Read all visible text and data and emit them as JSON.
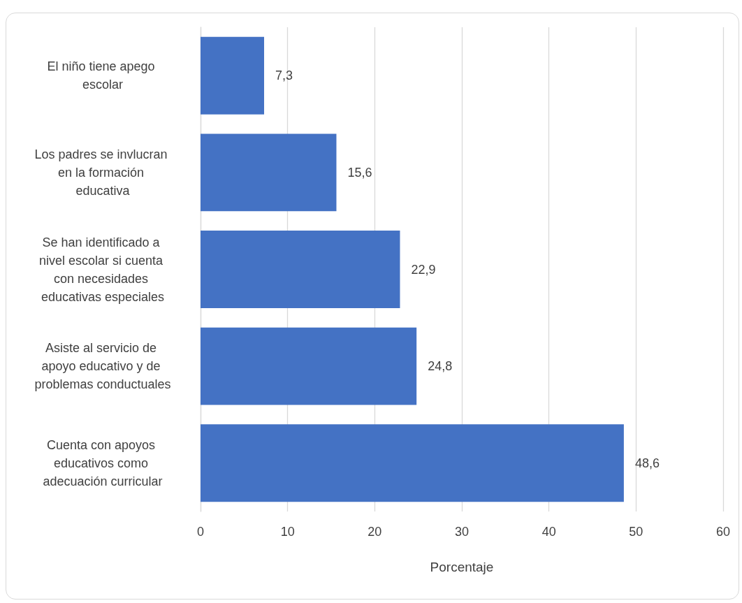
{
  "chart_data": {
    "type": "bar",
    "orientation": "horizontal",
    "xlabel": "Porcentaje",
    "categories": [
      "El niño tiene apego escolar",
      "Los padres se invlucran en la formación educativa",
      "Se han identificado a nivel escolar si cuenta con necesidades educativas especiales",
      "Asiste al servicio de apoyo educativo y de problemas conductuales",
      "Cuenta con apoyos educativos como adecuación curricular"
    ],
    "values": [
      7.3,
      15.6,
      22.9,
      24.8,
      48.6
    ],
    "value_labels": [
      "7,3",
      "15,6",
      "22,9",
      "24,8",
      "48,6"
    ],
    "color": "#4472c4",
    "xlim": [
      0,
      60
    ],
    "xticks": [
      0,
      10,
      20,
      30,
      40,
      50,
      60
    ],
    "grid": "x"
  }
}
